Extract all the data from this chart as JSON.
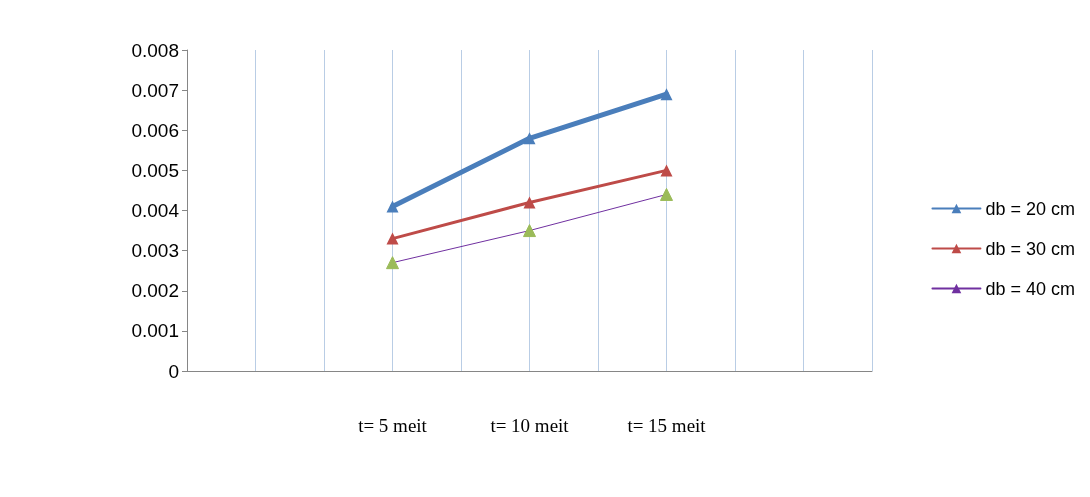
{
  "chart_data": {
    "type": "line",
    "categories": [
      null,
      null,
      null,
      "t= 5 meit",
      null,
      "t= 10 meit",
      null,
      "t= 15 meit",
      null,
      null,
      null
    ],
    "series": [
      {
        "name": "db = 20 cm",
        "color": "#4a7ebb",
        "values": [
          null,
          null,
          null,
          0.0041,
          null,
          0.0058,
          null,
          0.0069,
          null,
          null,
          null
        ]
      },
      {
        "name": "db = 30 cm",
        "color": "#be4b48",
        "values": [
          null,
          null,
          null,
          0.0033,
          null,
          0.0042,
          null,
          0.005,
          null,
          null,
          null
        ]
      },
      {
        "name": "db = 40 cm",
        "color": "#7030a0",
        "colors": [
          null,
          null,
          null,
          "#9bbb59",
          null,
          "#9bbb59",
          null,
          "#9bbb59",
          null,
          null,
          null
        ],
        "values": [
          null,
          null,
          null,
          0.0027,
          null,
          0.0035,
          null,
          0.0044,
          null,
          null,
          null
        ]
      }
    ],
    "ylim": [
      0,
      0.008
    ],
    "yticks": [
      0,
      0.001,
      0.002,
      0.003,
      0.004,
      0.005,
      0.006,
      0.007,
      0.008
    ],
    "grid": "x",
    "legend": "right",
    "marker": "triangle",
    "line_style": "solid"
  }
}
